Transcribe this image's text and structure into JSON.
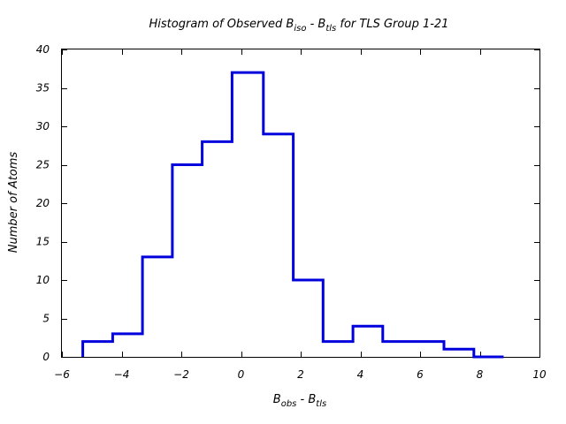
{
  "chart_data": {
    "type": "bar",
    "title": {
      "pre": "Histogram of Observed B",
      "sub1": "iso",
      "mid": " - B",
      "sub2": "tls",
      "post": " for TLS Group 1-21"
    },
    "xlabel": {
      "pre": "B",
      "sub1": "obs",
      "mid": " - B",
      "sub2": "tls"
    },
    "ylabel": "Number of Atoms",
    "xlim": [
      -6,
      10
    ],
    "ylim": [
      0,
      40
    ],
    "xticks": [
      -6,
      -4,
      -2,
      0,
      2,
      4,
      6,
      8,
      10
    ],
    "yticks": [
      0,
      5,
      10,
      15,
      20,
      25,
      30,
      35,
      40
    ],
    "xtick_labels": [
      "−6",
      "−4",
      "−2",
      "0",
      "2",
      "4",
      "6",
      "8",
      "10"
    ],
    "ytick_labels": [
      "0",
      "5",
      "10",
      "15",
      "20",
      "25",
      "30",
      "35",
      "40"
    ],
    "bin_edges": [
      -5.3,
      -4.3,
      -3.3,
      -2.3,
      -1.3,
      -0.3,
      0.75,
      1.75,
      2.75,
      3.75,
      4.75,
      5.75,
      6.8,
      7.8,
      8.8
    ],
    "values": [
      2,
      3,
      13,
      25,
      28,
      37,
      29,
      10,
      2,
      4,
      2,
      2,
      1,
      0
    ],
    "grid": false,
    "legend": "none",
    "series_color": "#0000dd"
  }
}
